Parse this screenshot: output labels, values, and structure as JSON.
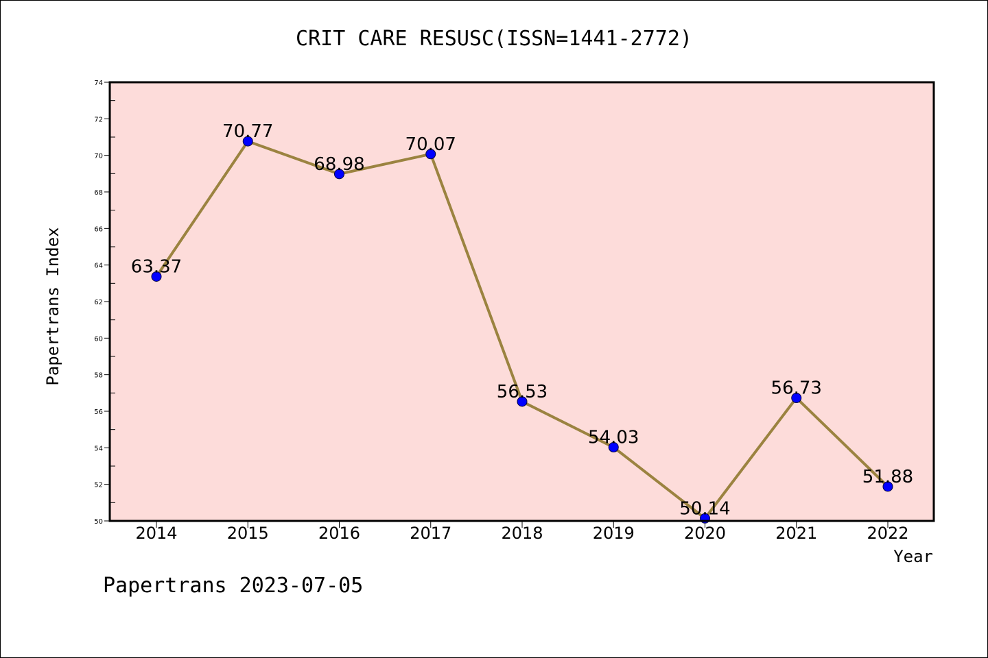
{
  "chart_data": {
    "type": "line",
    "title": "CRIT CARE RESUSC(ISSN=1441-2772)",
    "xlabel": "Year",
    "ylabel": "Papertrans Index",
    "categories": [
      "2014",
      "2015",
      "2016",
      "2017",
      "2018",
      "2019",
      "2020",
      "2021",
      "2022"
    ],
    "values": [
      63.37,
      70.77,
      68.98,
      70.07,
      56.53,
      54.03,
      50.14,
      56.73,
      51.88
    ],
    "data_labels": [
      "63.37",
      "70.77",
      "68.98",
      "70.07",
      "56.53",
      "54.03",
      "50.14",
      "56.73",
      "51.88"
    ],
    "ylim": [
      50,
      74
    ],
    "yticks": [
      "50",
      "52",
      "54",
      "56",
      "58",
      "60",
      "62",
      "64",
      "66",
      "68",
      "70",
      "72",
      "74"
    ],
    "plot_background": "#fddcda",
    "line_color": "#9b8340",
    "marker_color": "#0000ff",
    "grid": false
  },
  "footer": "Papertrans 2023-07-05"
}
